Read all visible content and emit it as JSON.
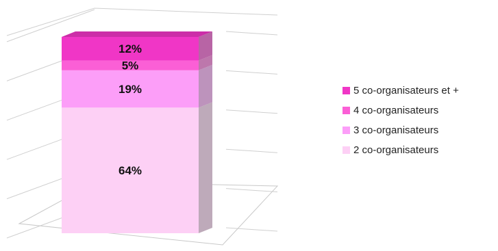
{
  "chart_data": {
    "type": "bar",
    "stacked": true,
    "three_d": true,
    "percent_labels": true,
    "grid": true,
    "legend_position": "right",
    "categories": [
      ""
    ],
    "series": [
      {
        "name": "2 co-organisateurs",
        "values": [
          64
        ],
        "label": "64%",
        "color": "#fdd0f5"
      },
      {
        "name": "3 co-organisateurs",
        "values": [
          19
        ],
        "label": "19%",
        "color": "#fc9ef8"
      },
      {
        "name": "4 co-organisateurs",
        "values": [
          5
        ],
        "label": "5%",
        "color": "#fb5fd6"
      },
      {
        "name": "5 co-organisateurs et +",
        "values": [
          12
        ],
        "label": "12%",
        "color": "#f036c6"
      }
    ],
    "ylim": [
      0,
      100
    ]
  },
  "legend": [
    {
      "name": "5 co-organisateurs et +",
      "color": "#f036c6"
    },
    {
      "name": "4 co-organisateurs",
      "color": "#fb5fd6"
    },
    {
      "name": "3 co-organisateurs",
      "color": "#fc9ef8"
    },
    {
      "name": "2 co-organisateurs",
      "color": "#fdd0f5"
    }
  ]
}
